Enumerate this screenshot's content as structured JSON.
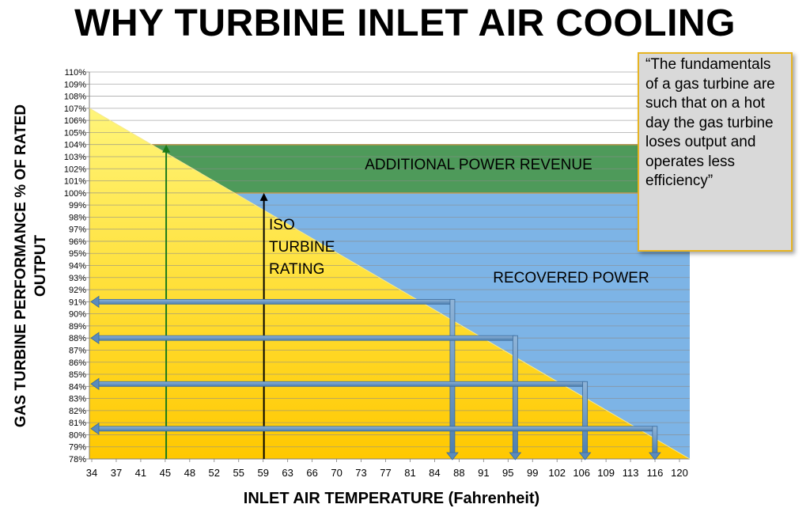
{
  "title": "WHY TURBINE INLET AIR COOLING",
  "quote": "“The fundamentals of a gas turbine are such that on a hot day the gas turbine loses output and operates less efficiency”",
  "chart_data": {
    "type": "area",
    "title": "WHY TURBINE INLET AIR COOLING",
    "xlabel": "INLET AIR TEMPERATURE  (Fahrenheit)",
    "ylabel": "GAS TURBINE PERFORMANCE  % OF RATED OUTPUT",
    "x_ticks": [
      "34",
      "37",
      "41",
      "45",
      "48",
      "52",
      "55",
      "59",
      "63",
      "66",
      "70",
      "73",
      "77",
      "81",
      "84",
      "88",
      "91",
      "95",
      "99",
      "102",
      "106",
      "109",
      "113",
      "116",
      "120"
    ],
    "y_ticks": [
      "78%",
      "79%",
      "80%",
      "81%",
      "82%",
      "83%",
      "84%",
      "85%",
      "86%",
      "87%",
      "88%",
      "89%",
      "90%",
      "91%",
      "92%",
      "93%",
      "94%",
      "95%",
      "96%",
      "97%",
      "98%",
      "99%",
      "100%",
      "101%",
      "102%",
      "103%",
      "104%",
      "105%",
      "106%",
      "107%",
      "108%",
      "109%",
      "110%"
    ],
    "ylim": [
      78,
      110
    ],
    "xlim": [
      34,
      120
    ],
    "performance_line": {
      "x": [
        34,
        120
      ],
      "y": [
        107,
        78
      ]
    },
    "regions": [
      {
        "label": "ADDITIONAL POWER REVENUE",
        "color": "#4e9a5a",
        "y_range": [
          100,
          104
        ],
        "x_range": [
          45,
          120
        ]
      },
      {
        "label": "RECOVERED POWER",
        "color": "#7db4e6",
        "y_range": [
          78,
          100
        ],
        "x_range": [
          59,
          120
        ]
      }
    ],
    "annotations": [
      {
        "text": "ISO TURBINE RATING",
        "x": 59,
        "y": 100,
        "color": "#000000"
      },
      {
        "text": "",
        "x": 45,
        "y": 104,
        "color": "#1a7a1a"
      }
    ],
    "hot_day_points": [
      {
        "x": 86,
        "y": 91
      },
      {
        "x": 95,
        "y": 88
      },
      {
        "x": 105,
        "y": 84.2
      },
      {
        "x": 115,
        "y": 80.5
      }
    ],
    "grid": true
  }
}
